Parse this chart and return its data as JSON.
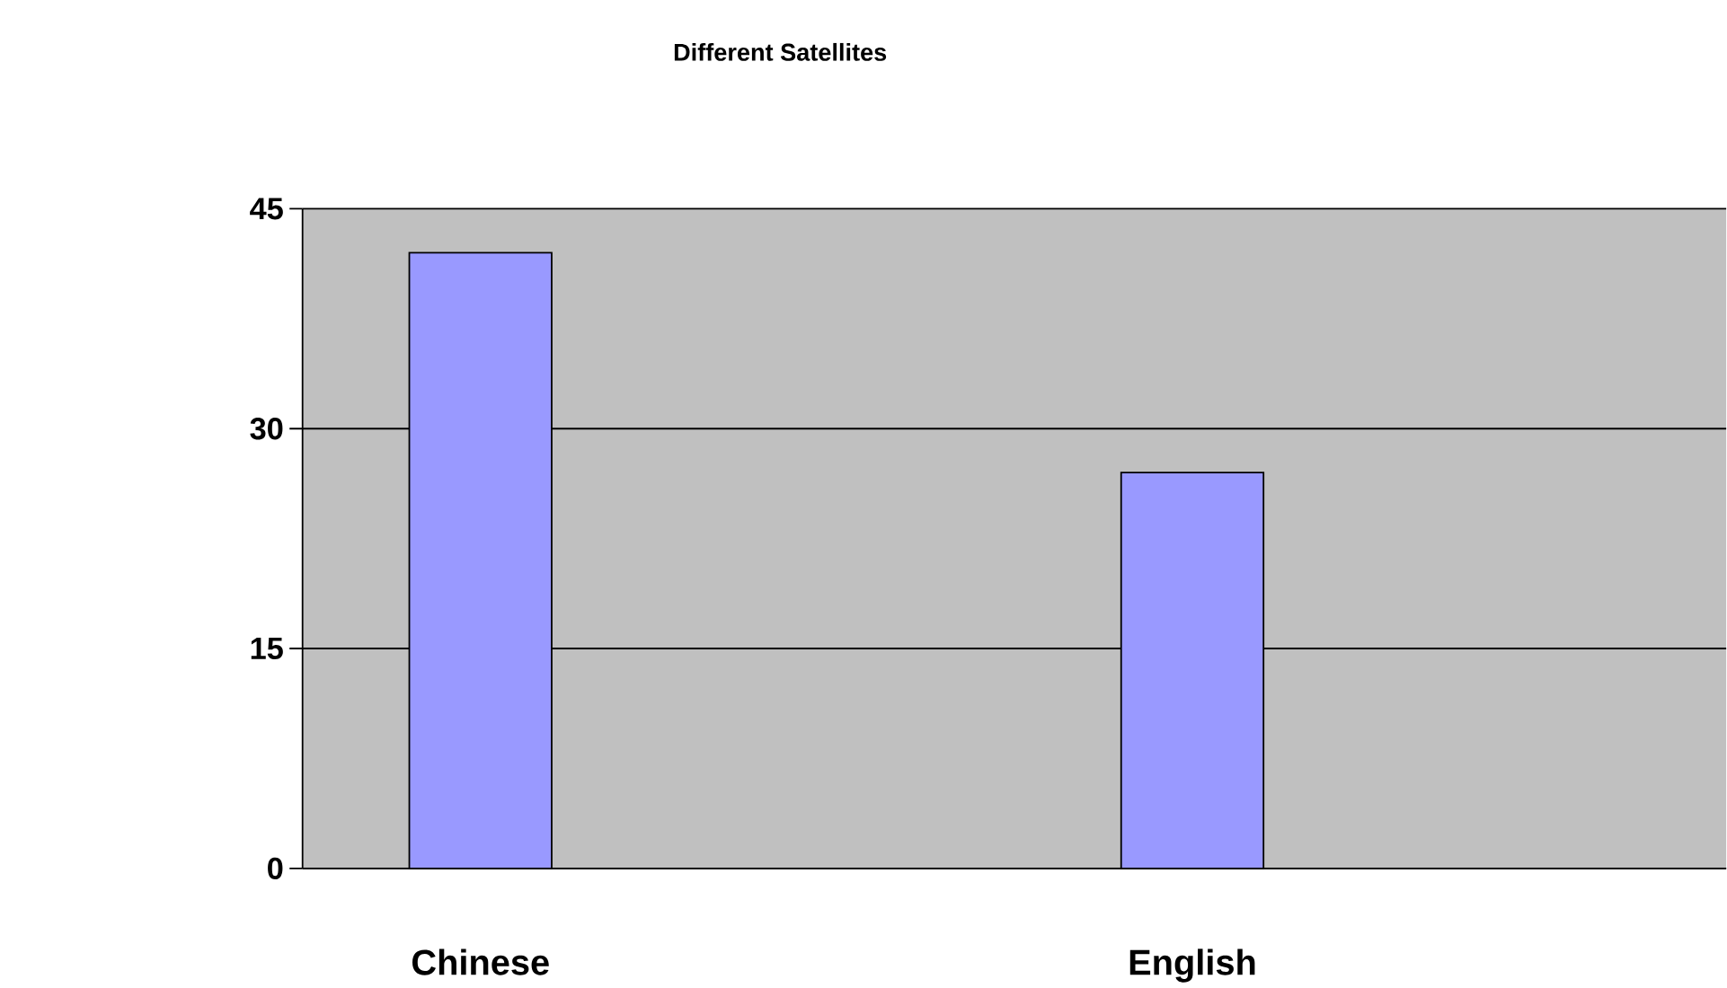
{
  "chart_data": {
    "type": "bar",
    "title": "Different Satellites",
    "categories": [
      "Chinese",
      null,
      "English",
      null
    ],
    "values": [
      42,
      null,
      27,
      null
    ],
    "color": "#9999ff",
    "ylim": [
      0,
      45
    ],
    "yticks": [
      0,
      15,
      30,
      45
    ],
    "grid": "y"
  }
}
